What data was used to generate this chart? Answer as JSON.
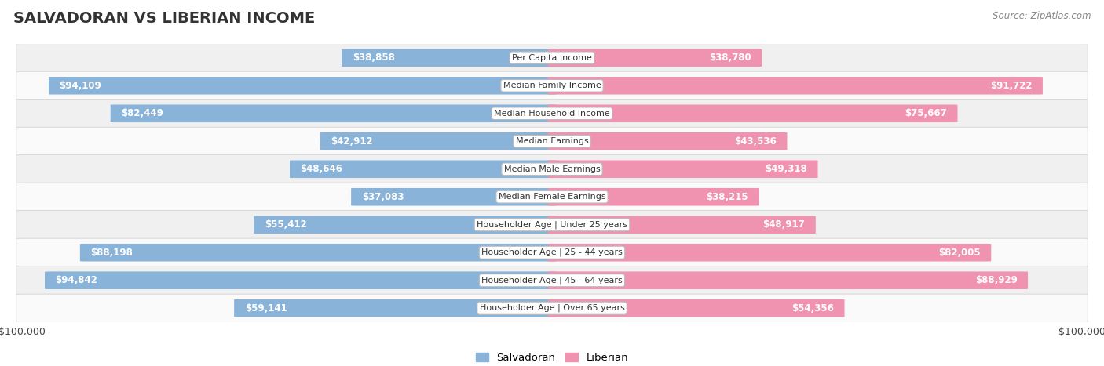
{
  "title": "SALVADORAN VS LIBERIAN INCOME",
  "source": "Source: ZipAtlas.com",
  "max_value": 100000,
  "categories": [
    "Per Capita Income",
    "Median Family Income",
    "Median Household Income",
    "Median Earnings",
    "Median Male Earnings",
    "Median Female Earnings",
    "Householder Age | Under 25 years",
    "Householder Age | 25 - 44 years",
    "Householder Age | 45 - 64 years",
    "Householder Age | Over 65 years"
  ],
  "salvadoran_values": [
    38858,
    94109,
    82449,
    42912,
    48646,
    37083,
    55412,
    88198,
    94842,
    59141
  ],
  "liberian_values": [
    38780,
    91722,
    75667,
    43536,
    49318,
    38215,
    48917,
    82005,
    88929,
    54356
  ],
  "salvadoran_labels": [
    "$38,858",
    "$94,109",
    "$82,449",
    "$42,912",
    "$48,646",
    "$37,083",
    "$55,412",
    "$88,198",
    "$94,842",
    "$59,141"
  ],
  "liberian_labels": [
    "$38,780",
    "$91,722",
    "$75,667",
    "$43,536",
    "$49,318",
    "$38,215",
    "$48,917",
    "$82,005",
    "$88,929",
    "$54,356"
  ],
  "salvadoran_color": "#89b3d9",
  "liberian_color": "#f093b0",
  "salvadoran_color_light": "#b8d0e8",
  "liberian_color_light": "#f7bece",
  "row_bg_even": "#f0f0f0",
  "row_bg_odd": "#fafafa",
  "bar_height": 0.62,
  "figsize": [
    14.06,
    4.67
  ],
  "dpi": 100,
  "inside_label_threshold": 0.3
}
